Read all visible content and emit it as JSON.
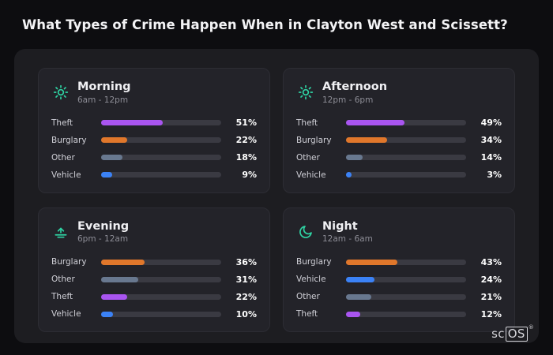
{
  "page": {
    "title": "What Types of Crime Happen When in Clayton West and Scissett?",
    "logo": {
      "prefix": "sc",
      "boxed": "OS",
      "reg": "®"
    }
  },
  "colors": {
    "accent": "#2fd3a3",
    "track": "#3a3a42",
    "theft": "#a955f0",
    "burglary": "#e0772b",
    "other": "#68788f",
    "vehicle": "#3b82f6"
  },
  "chart_data": [
    {
      "type": "bar",
      "title": "Morning",
      "subtitle": "6am - 12pm",
      "icon": "sun-icon",
      "unit": "%",
      "xlim": [
        0,
        100
      ],
      "categories": [
        "Theft",
        "Burglary",
        "Other",
        "Vehicle"
      ],
      "values": [
        51,
        22,
        18,
        9
      ]
    },
    {
      "type": "bar",
      "title": "Afternoon",
      "subtitle": "12pm - 6pm",
      "icon": "sun-icon",
      "unit": "%",
      "xlim": [
        0,
        100
      ],
      "categories": [
        "Theft",
        "Burglary",
        "Other",
        "Vehicle"
      ],
      "values": [
        49,
        34,
        14,
        3
      ]
    },
    {
      "type": "bar",
      "title": "Evening",
      "subtitle": "6pm - 12am",
      "icon": "sunset-icon",
      "unit": "%",
      "xlim": [
        0,
        100
      ],
      "categories": [
        "Burglary",
        "Other",
        "Theft",
        "Vehicle"
      ],
      "values": [
        36,
        31,
        22,
        10
      ]
    },
    {
      "type": "bar",
      "title": "Night",
      "subtitle": "12am - 6am",
      "icon": "moon-icon",
      "unit": "%",
      "xlim": [
        0,
        100
      ],
      "categories": [
        "Burglary",
        "Vehicle",
        "Other",
        "Theft"
      ],
      "values": [
        43,
        24,
        21,
        12
      ]
    }
  ]
}
